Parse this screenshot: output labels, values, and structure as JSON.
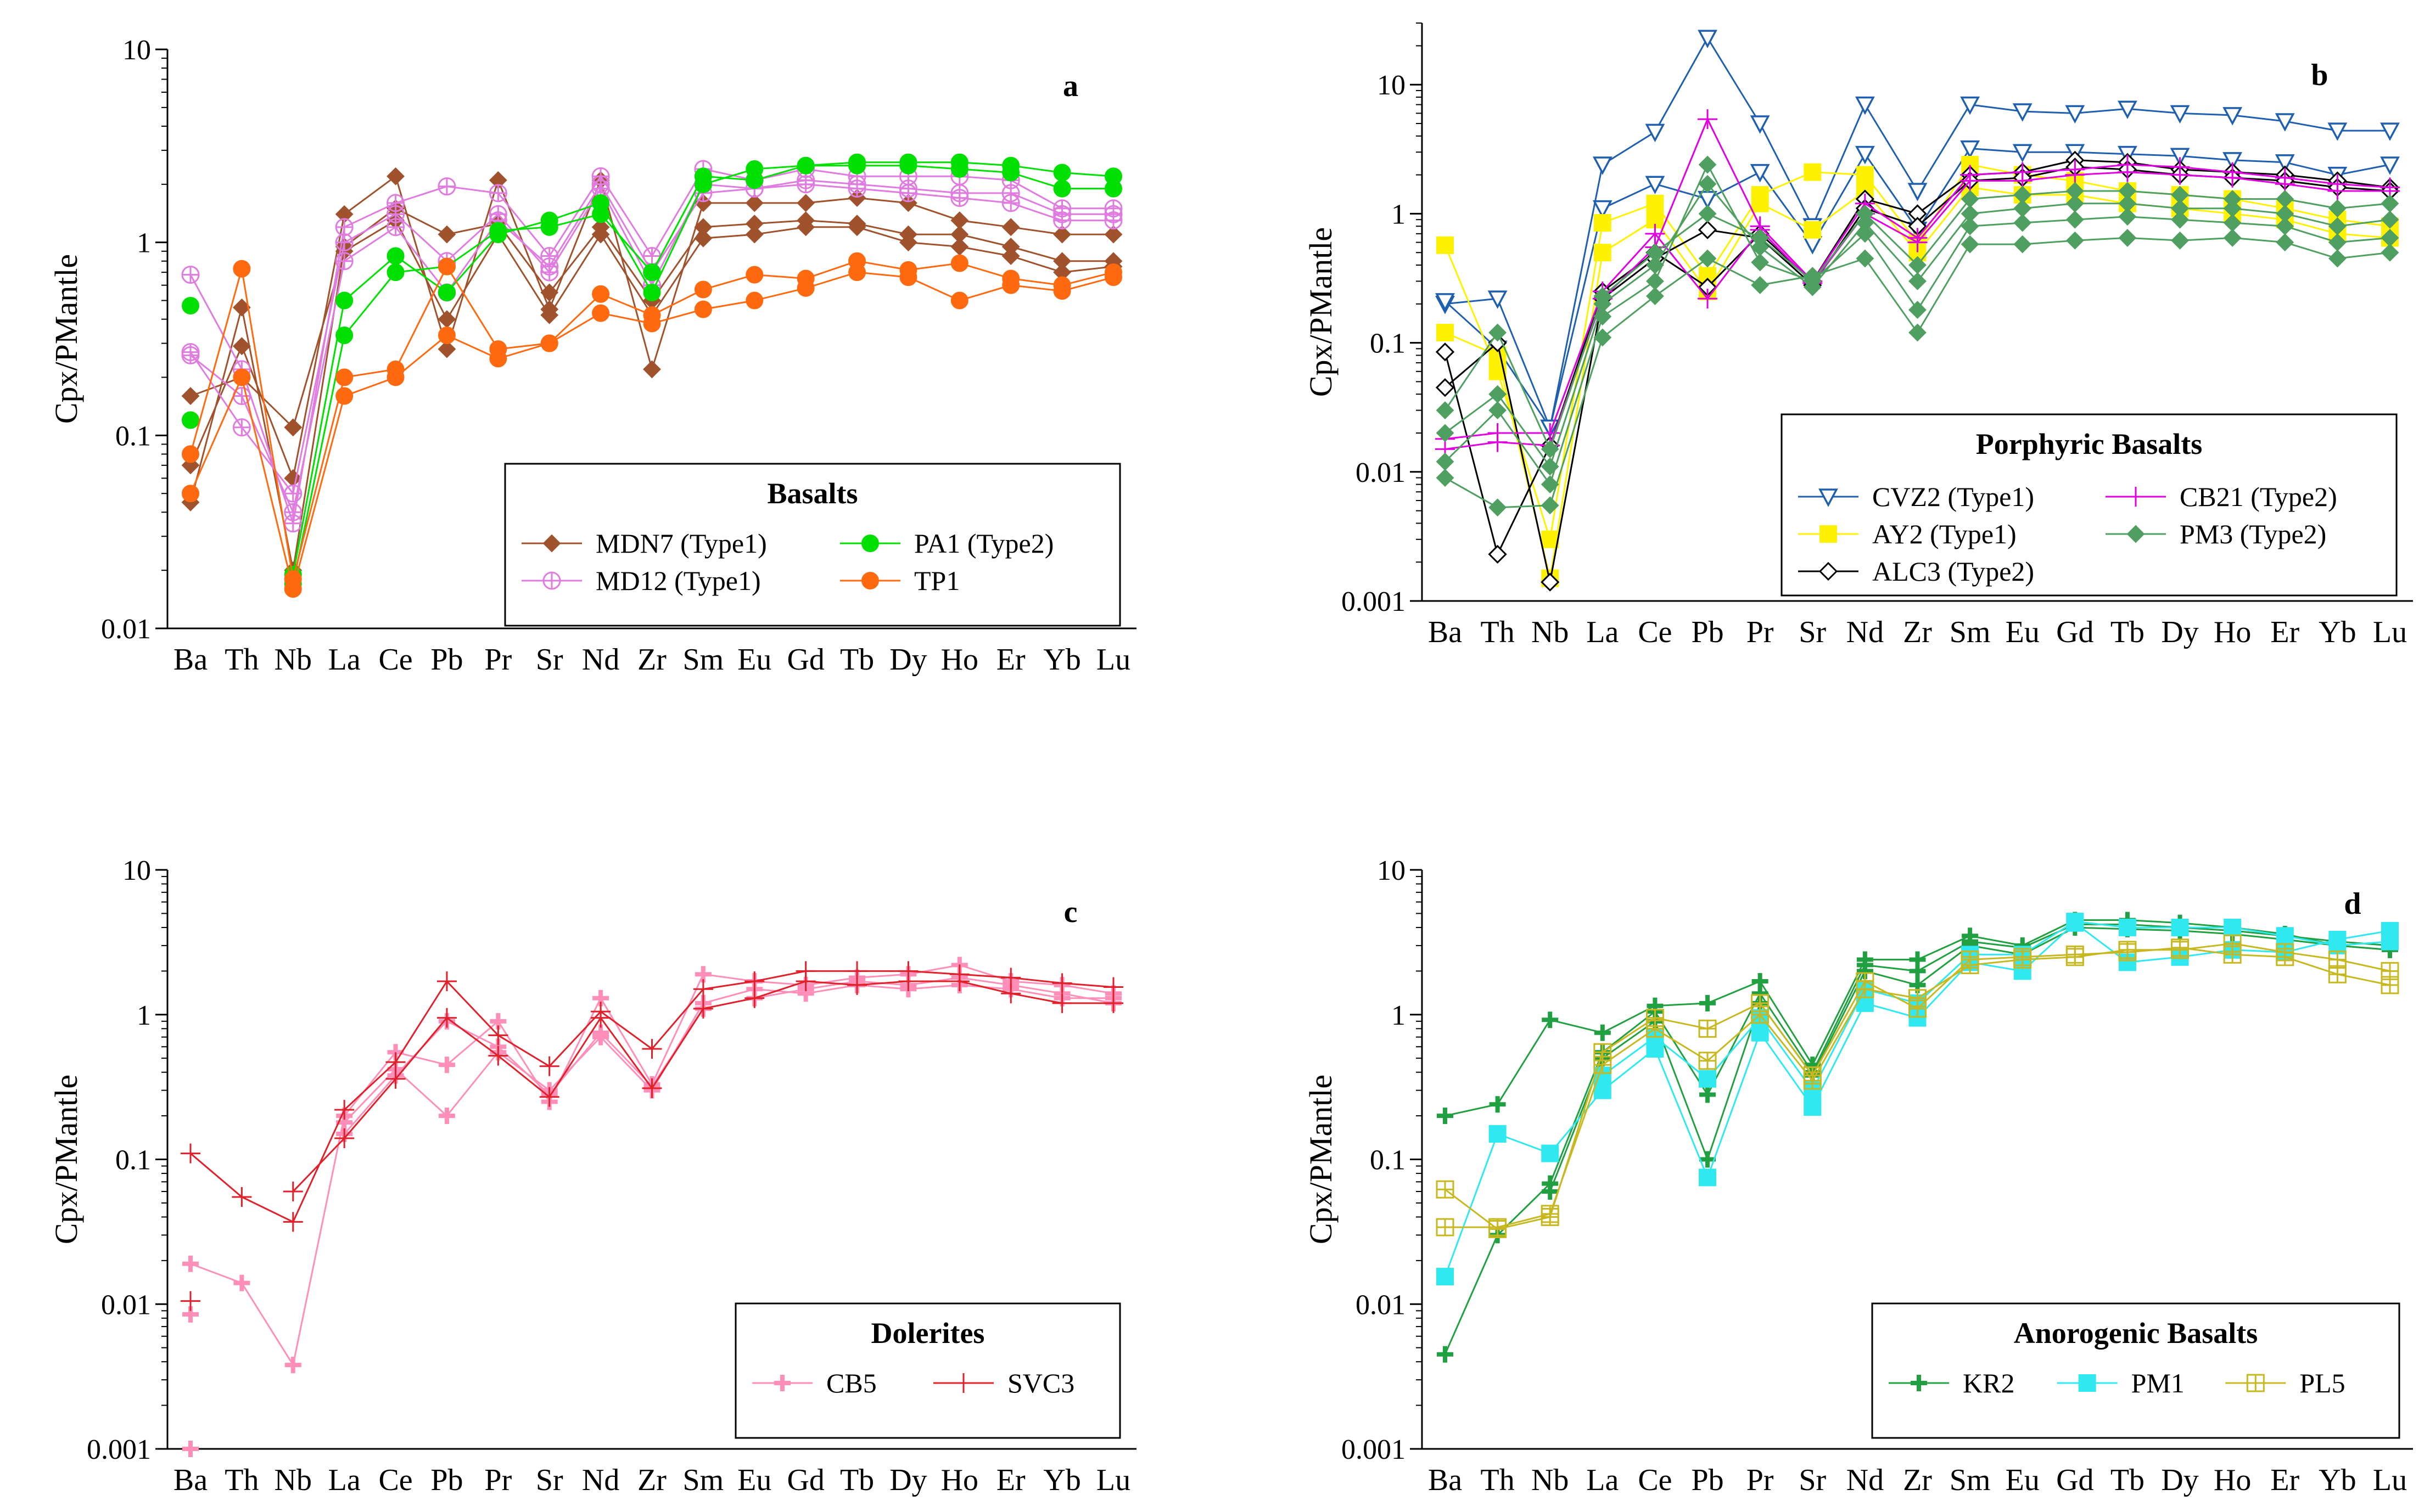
{
  "elements": [
    "Ba",
    "Th",
    "Nb",
    "La",
    "Ce",
    "Pb",
    "Pr",
    "Sr",
    "Nd",
    "Zr",
    "Sm",
    "Eu",
    "Gd",
    "Tb",
    "Dy",
    "Ho",
    "Er",
    "Yb",
    "Lu"
  ],
  "ytick_labels": [
    "0.001",
    "0.01",
    "0.1",
    "1",
    "10"
  ],
  "chart_data": [
    {
      "id": "a",
      "type": "line",
      "yscale": "log",
      "panel_label": "a",
      "ylabel": "Cpx/PMantle",
      "ylim": [
        0.01,
        10
      ],
      "legend_title": "Basalts",
      "legend_position": "bottom-right",
      "series": [
        {
          "name": "MDN7 (Type1)",
          "color": "#A0522D",
          "marker": "diamond",
          "values": [
            [
              0.07,
              0.29,
              0.06,
              1.4,
              2.2,
              0.28,
              2.1,
              0.45,
              2.1,
              0.22,
              1.6,
              1.6,
              1.6,
              1.7,
              1.6,
              1.3,
              1.2,
              1.1,
              1.1
            ],
            [
              0.045,
              0.46,
              0.02,
              0.95,
              1.5,
              1.1,
              1.25,
              0.55,
              1.2,
              0.5,
              1.2,
              1.25,
              1.3,
              1.25,
              1.1,
              1.1,
              0.95,
              0.8,
              0.8
            ],
            [
              0.16,
              0.2,
              0.11,
              0.9,
              1.3,
              0.4,
              1.1,
              0.42,
              1.1,
              0.42,
              1.05,
              1.1,
              1.2,
              1.2,
              1.0,
              0.95,
              0.85,
              0.7,
              0.75
            ]
          ]
        },
        {
          "name": "MD12 (Type1)",
          "color": "#E07BE0",
          "marker": "circle-plus",
          "values": [
            [
              0.68,
              0.22,
              0.035,
              1.2,
              1.6,
              1.95,
              1.8,
              0.85,
              2.2,
              0.85,
              2.4,
              2.1,
              2.4,
              2.2,
              2.2,
              2.2,
              2.1,
              1.5,
              1.5
            ],
            [
              0.27,
              0.11,
              0.05,
              1.0,
              1.4,
              0.8,
              1.4,
              0.7,
              1.9,
              0.6,
              2.0,
              1.9,
              2.1,
              2.0,
              1.9,
              1.8,
              1.8,
              1.4,
              1.4
            ],
            [
              0.26,
              0.16,
              0.04,
              0.8,
              1.2,
              0.55,
              1.3,
              0.75,
              2.0,
              0.7,
              1.8,
              1.9,
              2.0,
              1.9,
              1.8,
              1.7,
              1.6,
              1.3,
              1.3
            ]
          ]
        },
        {
          "name": "PA1 (Type2)",
          "color": "#00E000",
          "marker": "circle",
          "values": [
            [
              0.47,
              null,
              0.019,
              0.5,
              0.85,
              0.55,
              1.1,
              1.3,
              1.6,
              0.55,
              2.0,
              2.4,
              2.5,
              2.6,
              2.6,
              2.6,
              2.5,
              2.3,
              2.2
            ],
            [
              0.12,
              null,
              0.017,
              0.33,
              0.7,
              0.75,
              1.15,
              1.2,
              1.4,
              0.7,
              2.2,
              2.1,
              2.5,
              2.5,
              2.5,
              2.4,
              2.3,
              1.9,
              1.9
            ]
          ]
        },
        {
          "name": "TP1",
          "color": "#FF6A10",
          "marker": "circle",
          "values": [
            [
              0.08,
              0.73,
              0.018,
              0.2,
              0.22,
              0.75,
              0.28,
              0.3,
              0.54,
              0.42,
              0.57,
              0.68,
              0.65,
              0.8,
              0.72,
              0.78,
              0.65,
              0.6,
              0.7
            ],
            [
              0.05,
              0.2,
              0.016,
              0.16,
              0.2,
              0.33,
              0.25,
              0.3,
              0.43,
              0.38,
              0.45,
              0.5,
              0.58,
              0.7,
              0.66,
              0.5,
              0.6,
              0.56,
              0.66
            ]
          ]
        }
      ]
    },
    {
      "id": "b",
      "type": "line",
      "yscale": "log",
      "panel_label": "b",
      "ylabel": "Cpx/PMantle",
      "ylim": [
        0.001,
        30
      ],
      "legend_title": "Porphyric Basalts",
      "legend_position": "bottom-right",
      "series": [
        {
          "name": "CVZ2 (Type1)",
          "color": "#1F5FAF",
          "marker": "triangle-down",
          "values": [
            [
              0.2,
              0.22,
              0.022,
              2.4,
              4.3,
              23,
              5.0,
              0.8,
              7.0,
              1.5,
              7.0,
              6.2,
              6.0,
              6.5,
              6.0,
              5.8,
              5.2,
              4.4,
              4.4
            ],
            [
              0.21,
              0.09,
              0.022,
              1.1,
              1.7,
              1.3,
              2.1,
              0.58,
              2.9,
              0.75,
              3.2,
              3.0,
              3.0,
              2.9,
              2.8,
              2.6,
              2.5,
              2.0,
              2.4
            ]
          ]
        },
        {
          "name": "AY2 (Type1)",
          "color": "#FFF200",
          "marker": "square",
          "values": [
            [
              0.57,
              0.06,
              0.003,
              0.85,
              1.2,
              0.33,
              1.4,
              2.1,
              2.0,
              0.6,
              2.4,
              2.0,
              1.8,
              1.5,
              1.4,
              1.3,
              1.1,
              0.9,
              0.8
            ],
            [
              0.12,
              0.08,
              0.0015,
              0.5,
              0.9,
              0.25,
              1.2,
              0.75,
              1.5,
              0.5,
              1.6,
              1.4,
              1.4,
              1.2,
              1.1,
              1.0,
              0.9,
              0.7,
              0.65
            ]
          ]
        },
        {
          "name": "ALC3 (Type2)",
          "color": "#000000",
          "marker": "diamond-open",
          "values": [
            [
              0.085,
              0.0023,
              0.016,
              0.25,
              0.5,
              0.27,
              0.7,
              0.3,
              1.3,
              1.0,
              2.0,
              2.1,
              2.6,
              2.5,
              2.2,
              2.1,
              2.0,
              1.8,
              1.6
            ],
            [
              0.045,
              0.1,
              0.0014,
              0.22,
              0.45,
              0.75,
              0.65,
              0.28,
              1.1,
              0.8,
              1.8,
              1.9,
              2.3,
              2.2,
              2.0,
              1.9,
              1.8,
              1.6,
              1.5
            ]
          ]
        },
        {
          "name": "CB21 (Type2)",
          "color": "#E000E0",
          "marker": "plus",
          "values": [
            [
              0.015,
              0.017,
              0.016,
              0.22,
              0.55,
              5.4,
              0.8,
              0.3,
              1.2,
              0.65,
              2.0,
              2.1,
              2.2,
              2.4,
              2.3,
              2.1,
              1.9,
              1.7,
              1.6
            ],
            [
              0.018,
              0.02,
              0.02,
              0.25,
              0.7,
              0.22,
              0.75,
              0.29,
              1.0,
              0.6,
              1.8,
              1.8,
              2.0,
              2.1,
              2.0,
              1.9,
              1.7,
              1.5,
              1.5
            ]
          ]
        },
        {
          "name": "PM3 (Type2)",
          "color": "#4FA060",
          "marker": "diamond",
          "values": [
            [
              0.009,
              0.0053,
              0.0055,
              0.11,
              0.23,
              0.45,
              0.28,
              0.33,
              0.45,
              0.12,
              0.58,
              0.58,
              0.62,
              0.65,
              0.62,
              0.65,
              0.6,
              0.45,
              0.5
            ],
            [
              0.012,
              0.03,
              0.008,
              0.16,
              0.3,
              2.4,
              0.42,
              0.3,
              0.7,
              0.18,
              0.8,
              0.85,
              0.9,
              0.95,
              0.9,
              0.85,
              0.8,
              0.6,
              0.65
            ],
            [
              0.02,
              0.04,
              0.011,
              0.2,
              0.4,
              1.7,
              0.55,
              0.27,
              0.85,
              0.3,
              1.0,
              1.1,
              1.2,
              1.2,
              1.1,
              1.1,
              1.0,
              0.8,
              0.9
            ],
            [
              0.03,
              0.12,
              0.015,
              0.23,
              0.5,
              1.0,
              0.65,
              0.3,
              1.0,
              0.4,
              1.3,
              1.4,
              1.5,
              1.5,
              1.4,
              1.3,
              1.3,
              1.1,
              1.2
            ]
          ]
        }
      ]
    },
    {
      "id": "c",
      "type": "line",
      "yscale": "log",
      "panel_label": "c",
      "ylabel": "Cpx/PMantle",
      "ylim": [
        0.001,
        10
      ],
      "legend_title": "Dolerites",
      "legend_position": "bottom-right",
      "series": [
        {
          "name": "CB5",
          "color": "#FF8FB8",
          "marker": "plus-bold",
          "values": [
            [
              0.019,
              0.014,
              0.0038,
              0.2,
              0.55,
              0.45,
              0.9,
              0.25,
              1.3,
              0.33,
              1.9,
              1.7,
              1.6,
              1.8,
              1.9,
              2.2,
              1.7,
              1.6,
              1.4
            ],
            [
              0.0085,
              null,
              null,
              0.18,
              0.42,
              0.2,
              0.55,
              0.3,
              0.7,
              0.3,
              1.2,
              1.5,
              1.4,
              1.6,
              1.5,
              1.6,
              1.5,
              1.3,
              1.3
            ],
            [
              0.001,
              null,
              null,
              0.15,
              0.38,
              0.9,
              0.6,
              0.28,
              0.75,
              0.32,
              1.1,
              1.3,
              1.5,
              1.7,
              1.6,
              1.8,
              1.6,
              1.4,
              1.2
            ]
          ]
        },
        {
          "name": "SVC3",
          "color": "#E0202A",
          "marker": "plus",
          "values": [
            [
              0.11,
              0.055,
              0.037,
              0.22,
              0.47,
              1.7,
              0.72,
              0.44,
              1.05,
              0.58,
              1.5,
              1.7,
              2.0,
              2.0,
              2.0,
              1.9,
              1.8,
              1.65,
              1.55
            ],
            [
              0.0105,
              null,
              0.06,
              0.14,
              0.36,
              0.95,
              0.52,
              0.27,
              0.95,
              0.31,
              1.1,
              1.3,
              1.7,
              1.6,
              1.7,
              1.7,
              1.4,
              1.2,
              1.2
            ]
          ]
        }
      ]
    },
    {
      "id": "d",
      "type": "line",
      "yscale": "log",
      "panel_label": "d",
      "ylabel": "Cpx/PMantle",
      "ylim": [
        0.001,
        10
      ],
      "legend_title": "Anorogenic Basalts",
      "legend_position": "bottom-right",
      "series": [
        {
          "name": "KR2",
          "color": "#20A040",
          "marker": "plus-bold",
          "values": [
            [
              0.2,
              0.24,
              0.92,
              0.75,
              1.15,
              1.2,
              1.7,
              0.45,
              2.4,
              2.4,
              3.5,
              3.0,
              4.5,
              4.5,
              4.3,
              4.0,
              3.6,
              3.0,
              2.8
            ],
            [
              0.0045,
              0.03,
              0.068,
              0.55,
              1.05,
              0.28,
              1.4,
              0.4,
              2.2,
              2.0,
              3.2,
              2.9,
              4.2,
              4.2,
              4.0,
              3.8,
              3.5,
              3.2,
              3.0
            ],
            [
              null,
              null,
              0.06,
              0.5,
              0.9,
              0.1,
              1.2,
              0.38,
              2.0,
              1.6,
              3.0,
              2.6,
              4.0,
              3.9,
              3.8,
              3.6,
              3.3,
              3.0,
              2.8
            ]
          ]
        },
        {
          "name": "PM1",
          "color": "#30E8F0",
          "marker": "square",
          "values": [
            [
              0.0155,
              0.15,
              0.11,
              0.3,
              0.58,
              0.075,
              0.75,
              0.23,
              1.2,
              0.95,
              2.3,
              2.0,
              4.3,
              2.3,
              2.5,
              2.8,
              2.7,
              3.3,
              3.8
            ],
            [
              null,
              null,
              null,
              0.38,
              0.7,
              0.36,
              0.95,
              0.3,
              1.5,
              1.2,
              2.6,
              2.6,
              4.4,
              4.0,
              4.0,
              4.0,
              3.5,
              3.0,
              3.2
            ]
          ]
        },
        {
          "name": "PL5",
          "color": "#C8B820",
          "marker": "square-plus",
          "values": [
            [
              0.062,
              0.033,
              0.04,
              0.55,
              0.95,
              0.8,
              1.2,
              0.38,
              1.7,
              1.1,
              2.4,
              2.5,
              2.6,
              2.7,
              2.9,
              2.6,
              2.5,
              1.9,
              1.6
            ],
            [
              0.034,
              0.034,
              0.042,
              0.45,
              0.8,
              0.48,
              1.0,
              0.35,
              1.5,
              1.3,
              2.2,
              2.4,
              2.5,
              2.8,
              2.8,
              3.1,
              2.7,
              2.4,
              2.0
            ]
          ]
        }
      ]
    }
  ]
}
